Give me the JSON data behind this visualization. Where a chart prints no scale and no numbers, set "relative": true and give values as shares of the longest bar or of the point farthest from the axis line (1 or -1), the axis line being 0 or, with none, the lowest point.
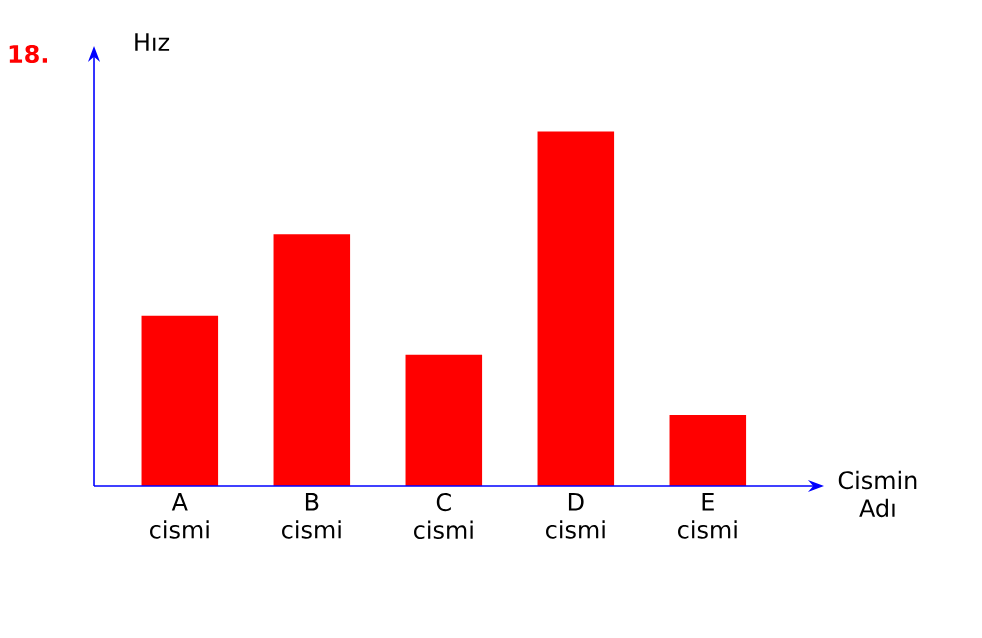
{
  "chart_data": {
    "type": "bar",
    "relative": true,
    "ylabel": "Hız",
    "xlabel": "Cismin Adı",
    "annotations": [
      "18."
    ],
    "categories": [
      "A cismi",
      "B cismi",
      "C cismi",
      "D cismi",
      "E cismi"
    ],
    "values": [
      0.48,
      0.71,
      0.37,
      1,
      0.2
    ],
    "color": "#ff0000"
  }
}
